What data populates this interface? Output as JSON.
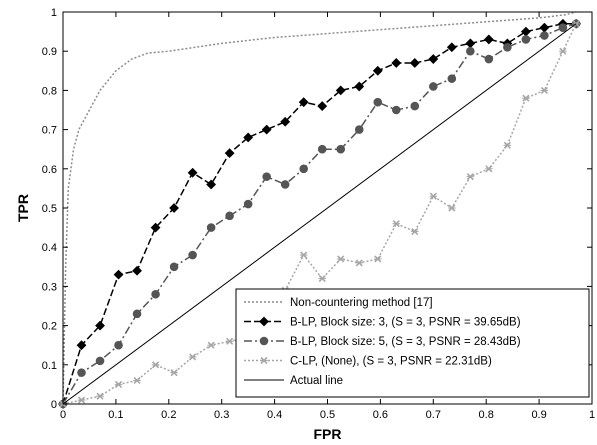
{
  "chart_data": {
    "type": "line",
    "xlabel": "FPR",
    "ylabel": "TPR",
    "xlim": [
      0,
      1
    ],
    "ylim": [
      0,
      1
    ],
    "grid": false,
    "legend_position": "bottom-right",
    "x_ticks": [
      0,
      0.1,
      0.2,
      0.3,
      0.4,
      0.5,
      0.6,
      0.7,
      0.8,
      0.9,
      1
    ],
    "y_ticks": [
      0,
      0.1,
      0.2,
      0.3,
      0.4,
      0.5,
      0.6,
      0.7,
      0.8,
      0.9,
      1
    ],
    "x_tick_labels": [
      "0",
      "0.1",
      "0.2",
      "0.3",
      "0.4",
      "0.5",
      "0.6",
      "0.7",
      "0.8",
      "0.9",
      "1"
    ],
    "y_tick_labels": [
      "0",
      "0.1",
      "0.2",
      "0.3",
      "0.4",
      "0.5",
      "0.6",
      "0.7",
      "0.8",
      "0.9",
      "1"
    ],
    "series": [
      {
        "name": "Non-countering method [17]",
        "style": "dotted",
        "marker": "none",
        "color": "#8c8c8c",
        "x": [
          0,
          0.005,
          0.01,
          0.02,
          0.03,
          0.05,
          0.07,
          0.1,
          0.13,
          0.16,
          0.2,
          0.3,
          0.4,
          0.5,
          0.6,
          0.7,
          0.8,
          0.9,
          0.95,
          0.97
        ],
        "y": [
          0,
          0.35,
          0.55,
          0.65,
          0.7,
          0.75,
          0.8,
          0.85,
          0.88,
          0.895,
          0.9,
          0.92,
          0.935,
          0.945,
          0.955,
          0.965,
          0.975,
          0.985,
          0.993,
          1.0
        ]
      },
      {
        "name": "B-LP, Block size: 3, (S = 3, PSNR = 39.65dB)",
        "style": "dashed",
        "marker": "diamond",
        "color": "#000000",
        "x": [
          0,
          0.035,
          0.07,
          0.105,
          0.14,
          0.175,
          0.21,
          0.245,
          0.28,
          0.315,
          0.35,
          0.385,
          0.42,
          0.455,
          0.49,
          0.525,
          0.56,
          0.595,
          0.63,
          0.665,
          0.7,
          0.735,
          0.77,
          0.805,
          0.84,
          0.875,
          0.91,
          0.945,
          0.97
        ],
        "y": [
          0,
          0.15,
          0.2,
          0.33,
          0.34,
          0.45,
          0.5,
          0.59,
          0.56,
          0.64,
          0.68,
          0.7,
          0.72,
          0.77,
          0.76,
          0.8,
          0.81,
          0.85,
          0.87,
          0.87,
          0.88,
          0.91,
          0.92,
          0.93,
          0.92,
          0.95,
          0.96,
          0.97,
          0.97
        ]
      },
      {
        "name": "B-LP, Block size: 5, (S = 3, PSNR = 28.43dB)",
        "style": "dashdot",
        "marker": "circle",
        "color": "#555555",
        "x": [
          0,
          0.035,
          0.07,
          0.105,
          0.14,
          0.175,
          0.21,
          0.245,
          0.28,
          0.315,
          0.35,
          0.385,
          0.42,
          0.455,
          0.49,
          0.525,
          0.56,
          0.595,
          0.63,
          0.665,
          0.7,
          0.735,
          0.77,
          0.805,
          0.84,
          0.875,
          0.91,
          0.945,
          0.97
        ],
        "y": [
          0,
          0.08,
          0.11,
          0.15,
          0.23,
          0.28,
          0.35,
          0.38,
          0.45,
          0.48,
          0.51,
          0.58,
          0.56,
          0.6,
          0.65,
          0.65,
          0.7,
          0.77,
          0.75,
          0.76,
          0.81,
          0.83,
          0.9,
          0.88,
          0.91,
          0.93,
          0.94,
          0.96,
          0.97
        ]
      },
      {
        "name": "C-LP, (None), (S = 3, PSNR = 22.31dB)",
        "style": "dotted",
        "marker": "x",
        "color": "#a6a6a6",
        "x": [
          0,
          0.035,
          0.07,
          0.105,
          0.14,
          0.175,
          0.21,
          0.245,
          0.28,
          0.315,
          0.35,
          0.385,
          0.42,
          0.455,
          0.49,
          0.525,
          0.56,
          0.595,
          0.63,
          0.665,
          0.7,
          0.735,
          0.77,
          0.805,
          0.84,
          0.875,
          0.91,
          0.945,
          0.97
        ],
        "y": [
          0,
          0.01,
          0.02,
          0.05,
          0.06,
          0.1,
          0.08,
          0.12,
          0.15,
          0.16,
          0.17,
          0.2,
          0.29,
          0.38,
          0.32,
          0.37,
          0.36,
          0.37,
          0.46,
          0.44,
          0.53,
          0.5,
          0.58,
          0.6,
          0.66,
          0.78,
          0.8,
          0.9,
          0.97
        ]
      },
      {
        "name": "Actual line",
        "style": "solid",
        "marker": "none",
        "color": "#000000",
        "x": [
          0,
          0.97
        ],
        "y": [
          0,
          0.97
        ]
      }
    ]
  }
}
